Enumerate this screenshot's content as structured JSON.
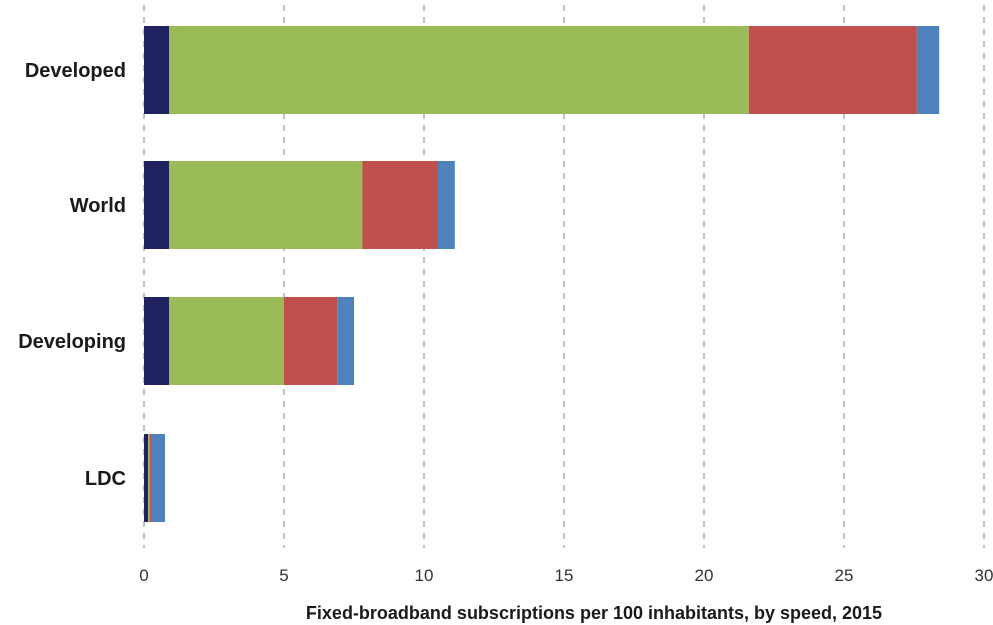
{
  "chart_data": {
    "type": "bar",
    "orientation": "horizontal",
    "stacked": true,
    "title": "",
    "xlabel": "Fixed-broadband subscriptions per 100 inhabitants, by speed, 2015",
    "ylabel": "",
    "xlim": [
      0,
      30
    ],
    "xticks": [
      "0",
      "5",
      "10",
      "15",
      "20",
      "25",
      "30"
    ],
    "grid": "vertical dashed",
    "categories": [
      "Developed",
      "World",
      "Developing",
      "LDC"
    ],
    "series": [
      {
        "color": "#1f2160",
        "values": [
          0.9,
          0.9,
          0.9,
          0.15
        ]
      },
      {
        "color": "#9bbb59",
        "values": [
          20.7,
          6.9,
          4.1,
          0.05
        ]
      },
      {
        "color": "#c0504d",
        "values": [
          6.0,
          2.7,
          1.9,
          0.05
        ]
      },
      {
        "color": "#4f81bd",
        "values": [
          0.8,
          0.6,
          0.6,
          0.5
        ]
      }
    ]
  }
}
